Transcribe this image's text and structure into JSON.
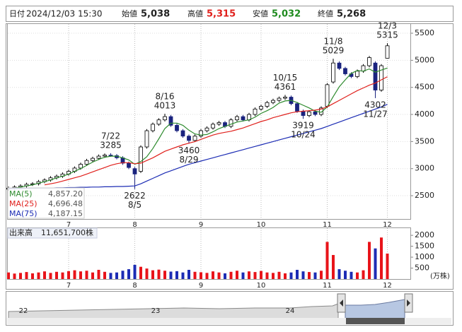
{
  "header": {
    "date_label": "日付",
    "datetime": "2024/12/03 15:30",
    "open_label": "始値",
    "open": "5,038",
    "high_label": "高値",
    "high": "5,315",
    "low_label": "安値",
    "low": "5,032",
    "close_label": "終値",
    "close": "5,268"
  },
  "chart_data": [
    {
      "type": "candlestick",
      "categories": [
        null,
        null,
        null,
        null,
        null,
        null,
        null,
        null,
        null,
        null,
        "7",
        null,
        null,
        null,
        null,
        null,
        null,
        null,
        null,
        null,
        null,
        "8",
        null,
        null,
        null,
        null,
        null,
        null,
        null,
        null,
        null,
        null,
        "9",
        null,
        null,
        null,
        null,
        null,
        null,
        null,
        null,
        null,
        "10",
        null,
        null,
        null,
        null,
        null,
        null,
        null,
        null,
        null,
        null,
        "11",
        null,
        null,
        null,
        null,
        null,
        null,
        null,
        null,
        null,
        "12"
      ],
      "open": [
        2620,
        2640,
        2660,
        2680,
        2710,
        2720,
        2760,
        2790,
        2830,
        2860,
        2900,
        2950,
        3010,
        3080,
        3150,
        3190,
        3230,
        3250,
        3240,
        3200,
        3100,
        3000,
        2950,
        3400,
        3700,
        3820,
        3900,
        3960,
        3800,
        3700,
        3600,
        3520,
        3600,
        3700,
        3750,
        3820,
        3850,
        3780,
        3900,
        3960,
        3900,
        4000,
        4100,
        4150,
        4220,
        4260,
        4300,
        4320,
        4200,
        4060,
        3980,
        4050,
        4000,
        4150,
        4600,
        4950,
        4850,
        4750,
        4700,
        4800,
        4900,
        4950,
        4450,
        5038
      ],
      "high": [
        2670,
        2690,
        2710,
        2740,
        2750,
        2790,
        2820,
        2860,
        2890,
        2930,
        2980,
        3040,
        3110,
        3180,
        3220,
        3260,
        3280,
        3285,
        3270,
        3230,
        3130,
        3030,
        3430,
        3730,
        3850,
        3930,
        4013,
        3990,
        3830,
        3730,
        3630,
        3630,
        3730,
        3780,
        3850,
        3880,
        3880,
        3930,
        3990,
        3990,
        4030,
        4130,
        4180,
        4250,
        4290,
        4330,
        4361,
        4350,
        4230,
        4090,
        4080,
        4080,
        4150,
        4580,
        5029,
        4980,
        4880,
        4780,
        4830,
        4930,
        5080,
        4980,
        4930,
        5315
      ],
      "low": [
        2590,
        2610,
        2630,
        2650,
        2680,
        2690,
        2730,
        2760,
        2800,
        2830,
        2870,
        2920,
        2980,
        3050,
        3120,
        3160,
        3200,
        3220,
        3170,
        3070,
        2990,
        2622,
        2920,
        3370,
        3670,
        3790,
        3870,
        3770,
        3670,
        3570,
        3460,
        3490,
        3570,
        3670,
        3720,
        3790,
        3750,
        3750,
        3870,
        3870,
        3870,
        3970,
        4070,
        4120,
        4190,
        4230,
        4270,
        4170,
        4030,
        3919,
        3950,
        3970,
        3970,
        4120,
        4570,
        4820,
        4720,
        4670,
        4670,
        4770,
        4870,
        4302,
        4420,
        5032
      ],
      "close": [
        2640,
        2660,
        2680,
        2710,
        2720,
        2760,
        2790,
        2830,
        2860,
        2900,
        2950,
        3010,
        3080,
        3150,
        3190,
        3230,
        3250,
        3240,
        3200,
        3100,
        3020,
        2900,
        3400,
        3700,
        3820,
        3900,
        3960,
        3800,
        3700,
        3600,
        3520,
        3600,
        3700,
        3750,
        3820,
        3850,
        3780,
        3900,
        3960,
        3900,
        4000,
        4100,
        4150,
        4220,
        4260,
        4300,
        4320,
        4200,
        4060,
        3980,
        4050,
        4000,
        4120,
        4550,
        4950,
        4850,
        4750,
        4700,
        4800,
        4900,
        5050,
        4450,
        4900,
        5268
      ],
      "up_color": "#ffffff",
      "down_color": "#1a237e",
      "series": [
        {
          "name": "MA(5)",
          "color": "#2e8b2e",
          "legend_value": "4,857.20",
          "values": [
            2620,
            2640,
            2660,
            2680,
            2700,
            2730,
            2760,
            2790,
            2830,
            2860,
            2900,
            2950,
            3000,
            3060,
            3120,
            3170,
            3210,
            3230,
            3230,
            3200,
            3160,
            3080,
            3130,
            3220,
            3370,
            3550,
            3740,
            3840,
            3840,
            3800,
            3710,
            3640,
            3620,
            3630,
            3680,
            3740,
            3780,
            3820,
            3860,
            3880,
            3900,
            3950,
            4020,
            4070,
            4130,
            4210,
            4250,
            4260,
            4220,
            4170,
            4120,
            4060,
            4040,
            4140,
            4330,
            4510,
            4640,
            4760,
            4810,
            4800,
            4840,
            4780,
            4820,
            4857.2
          ]
        },
        {
          "name": "MA(25)",
          "color": "#e0201c",
          "legend_value": "4,696.48",
          "values": [
            null,
            null,
            null,
            null,
            null,
            null,
            2700,
            2720,
            2740,
            2770,
            2800,
            2830,
            2860,
            2900,
            2940,
            2980,
            3020,
            3060,
            3090,
            3110,
            3110,
            3090,
            3100,
            3150,
            3200,
            3260,
            3320,
            3360,
            3400,
            3440,
            3470,
            3500,
            3540,
            3580,
            3620,
            3650,
            3670,
            3690,
            3720,
            3750,
            3790,
            3830,
            3870,
            3900,
            3940,
            3970,
            4000,
            4030,
            4050,
            4060,
            4070,
            4080,
            4100,
            4140,
            4200,
            4260,
            4320,
            4380,
            4440,
            4490,
            4540,
            4580,
            4640,
            4696.48
          ]
        },
        {
          "name": "MA(75)",
          "color": "#1c2cb4",
          "legend_value": "4,187.15",
          "values": [
            2630,
            2630,
            2630,
            2635,
            2635,
            2640,
            2640,
            2640,
            2645,
            2645,
            2650,
            2650,
            2655,
            2655,
            2660,
            2660,
            2665,
            2665,
            2670,
            2670,
            2675,
            2680,
            2720,
            2770,
            2820,
            2870,
            2920,
            2960,
            3000,
            3040,
            3080,
            3110,
            3140,
            3170,
            3200,
            3230,
            3260,
            3290,
            3320,
            3350,
            3380,
            3410,
            3440,
            3470,
            3500,
            3530,
            3560,
            3590,
            3620,
            3650,
            3680,
            3710,
            3740,
            3780,
            3820,
            3860,
            3900,
            3940,
            3980,
            4020,
            4060,
            4100,
            4140,
            4187.15
          ]
        }
      ],
      "annotations": [
        {
          "date": "7/22",
          "value": 3285
        },
        {
          "date": "8/5",
          "value": 2622
        },
        {
          "date": "8/16",
          "value": 4013
        },
        {
          "date": "8/29",
          "value": 3460
        },
        {
          "date": "10/15",
          "value": 4361
        },
        {
          "date": "10/24",
          "value": 3919
        },
        {
          "date": "11/8",
          "value": 5029
        },
        {
          "date": "11/27",
          "value": 4302
        },
        {
          "date": "12/3",
          "value": 5315
        }
      ],
      "ylim": [
        2070,
        5683
      ],
      "yticks": [
        2500,
        3000,
        3500,
        4000,
        4500,
        5000,
        5500
      ],
      "grid": true
    },
    {
      "type": "volume",
      "title": "出来高",
      "last_volume": "11,651,700株",
      "unit": "(万株)",
      "categories": [
        null,
        null,
        null,
        null,
        null,
        null,
        null,
        null,
        null,
        null,
        "7",
        null,
        null,
        null,
        null,
        null,
        null,
        null,
        null,
        null,
        null,
        "8",
        null,
        null,
        null,
        null,
        null,
        null,
        null,
        null,
        null,
        null,
        "9",
        null,
        null,
        null,
        null,
        null,
        null,
        null,
        null,
        null,
        "10",
        null,
        null,
        null,
        null,
        null,
        null,
        null,
        null,
        null,
        null,
        "11",
        null,
        null,
        null,
        null,
        null,
        null,
        null,
        null,
        null,
        "12"
      ],
      "values": [
        300,
        250,
        280,
        320,
        260,
        300,
        350,
        280,
        330,
        300,
        360,
        400,
        350,
        380,
        300,
        420,
        330,
        280,
        300,
        380,
        450,
        650,
        560,
        480,
        400,
        430,
        380,
        340,
        360,
        300,
        420,
        330,
        310,
        280,
        350,
        300,
        260,
        330,
        380,
        300,
        350,
        320,
        370,
        300,
        280,
        330,
        260,
        300,
        420,
        350,
        320,
        300,
        380,
        1700,
        1100,
        450,
        380,
        330,
        300,
        400,
        1700,
        1400,
        1900,
        1165
      ],
      "up_color": "#e8141a",
      "down_color": "#1c2cb4",
      "ylim": [
        0,
        2360
      ],
      "yticks": [
        500,
        1000,
        1500,
        2000
      ]
    }
  ],
  "navigator": {
    "labels": [
      "22",
      "23",
      "24"
    ]
  }
}
